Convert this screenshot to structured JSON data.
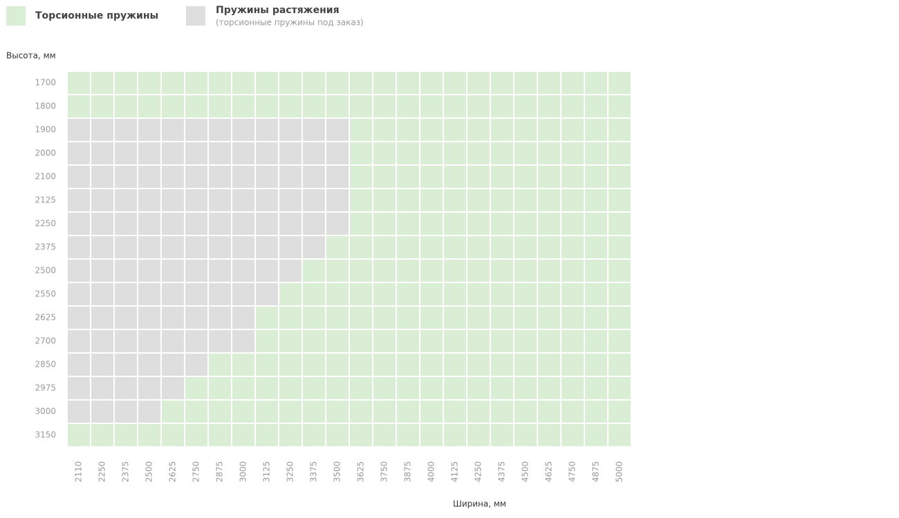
{
  "legend": [
    {
      "label": "Торсионные пружины",
      "color": "#d9eed5"
    },
    {
      "label": "Пружины растяжения",
      "note": "(торсионные пружины под заказ)",
      "color": "#dedede"
    }
  ],
  "y_label": "Высота, мм",
  "x_label": "Ширина, мм",
  "heights": [
    1700,
    1800,
    1900,
    2000,
    2100,
    2125,
    2250,
    2375,
    2500,
    2550,
    2625,
    2700,
    2850,
    2975,
    3000,
    3150
  ],
  "widths": [
    2110,
    2250,
    2375,
    2500,
    2625,
    2750,
    2875,
    3000,
    3125,
    3250,
    3375,
    3500,
    3625,
    3750,
    3875,
    4000,
    4125,
    4250,
    4375,
    4500,
    4625,
    4750,
    4875,
    5000
  ],
  "cells": [
    [
      0,
      0,
      0,
      0,
      0,
      0,
      0,
      0,
      0,
      0,
      0,
      0,
      0,
      0,
      0,
      0,
      0,
      0,
      0,
      0,
      0,
      0,
      0,
      0
    ],
    [
      0,
      0,
      0,
      0,
      0,
      0,
      0,
      0,
      0,
      0,
      0,
      0,
      0,
      0,
      0,
      0,
      0,
      0,
      0,
      0,
      0,
      0,
      0,
      0
    ],
    [
      1,
      1,
      1,
      1,
      1,
      1,
      1,
      1,
      1,
      1,
      1,
      1,
      0,
      0,
      0,
      0,
      0,
      0,
      0,
      0,
      0,
      0,
      0,
      0
    ],
    [
      1,
      1,
      1,
      1,
      1,
      1,
      1,
      1,
      1,
      1,
      1,
      1,
      0,
      0,
      0,
      0,
      0,
      0,
      0,
      0,
      0,
      0,
      0,
      0
    ],
    [
      1,
      1,
      1,
      1,
      1,
      1,
      1,
      1,
      1,
      1,
      1,
      1,
      0,
      0,
      0,
      0,
      0,
      0,
      0,
      0,
      0,
      0,
      0,
      0
    ],
    [
      1,
      1,
      1,
      1,
      1,
      1,
      1,
      1,
      1,
      1,
      1,
      1,
      0,
      0,
      0,
      0,
      0,
      0,
      0,
      0,
      0,
      0,
      0,
      0
    ],
    [
      1,
      1,
      1,
      1,
      1,
      1,
      1,
      1,
      1,
      1,
      1,
      1,
      0,
      0,
      0,
      0,
      0,
      0,
      0,
      0,
      0,
      0,
      0,
      0
    ],
    [
      1,
      1,
      1,
      1,
      1,
      1,
      1,
      1,
      1,
      1,
      1,
      0,
      0,
      0,
      0,
      0,
      0,
      0,
      0,
      0,
      0,
      0,
      0,
      0
    ],
    [
      1,
      1,
      1,
      1,
      1,
      1,
      1,
      1,
      1,
      1,
      0,
      0,
      0,
      0,
      0,
      0,
      0,
      0,
      0,
      0,
      0,
      0,
      0,
      0
    ],
    [
      1,
      1,
      1,
      1,
      1,
      1,
      1,
      1,
      1,
      0,
      0,
      0,
      0,
      0,
      0,
      0,
      0,
      0,
      0,
      0,
      0,
      0,
      0,
      0
    ],
    [
      1,
      1,
      1,
      1,
      1,
      1,
      1,
      1,
      0,
      0,
      0,
      0,
      0,
      0,
      0,
      0,
      0,
      0,
      0,
      0,
      0,
      0,
      0,
      0
    ],
    [
      1,
      1,
      1,
      1,
      1,
      1,
      1,
      1,
      0,
      0,
      0,
      0,
      0,
      0,
      0,
      0,
      0,
      0,
      0,
      0,
      0,
      0,
      0,
      0
    ],
    [
      1,
      1,
      1,
      1,
      1,
      1,
      0,
      0,
      0,
      0,
      0,
      0,
      0,
      0,
      0,
      0,
      0,
      0,
      0,
      0,
      0,
      0,
      0,
      0
    ],
    [
      1,
      1,
      1,
      1,
      1,
      0,
      0,
      0,
      0,
      0,
      0,
      0,
      0,
      0,
      0,
      0,
      0,
      0,
      0,
      0,
      0,
      0,
      0,
      0
    ],
    [
      1,
      1,
      1,
      1,
      0,
      0,
      0,
      0,
      0,
      0,
      0,
      0,
      0,
      0,
      0,
      0,
      0,
      0,
      0,
      0,
      0,
      0,
      0,
      0
    ],
    [
      0,
      0,
      0,
      0,
      0,
      0,
      0,
      0,
      0,
      0,
      0,
      0,
      0,
      0,
      0,
      0,
      0,
      0,
      0,
      0,
      0,
      0,
      0,
      0
    ]
  ]
}
